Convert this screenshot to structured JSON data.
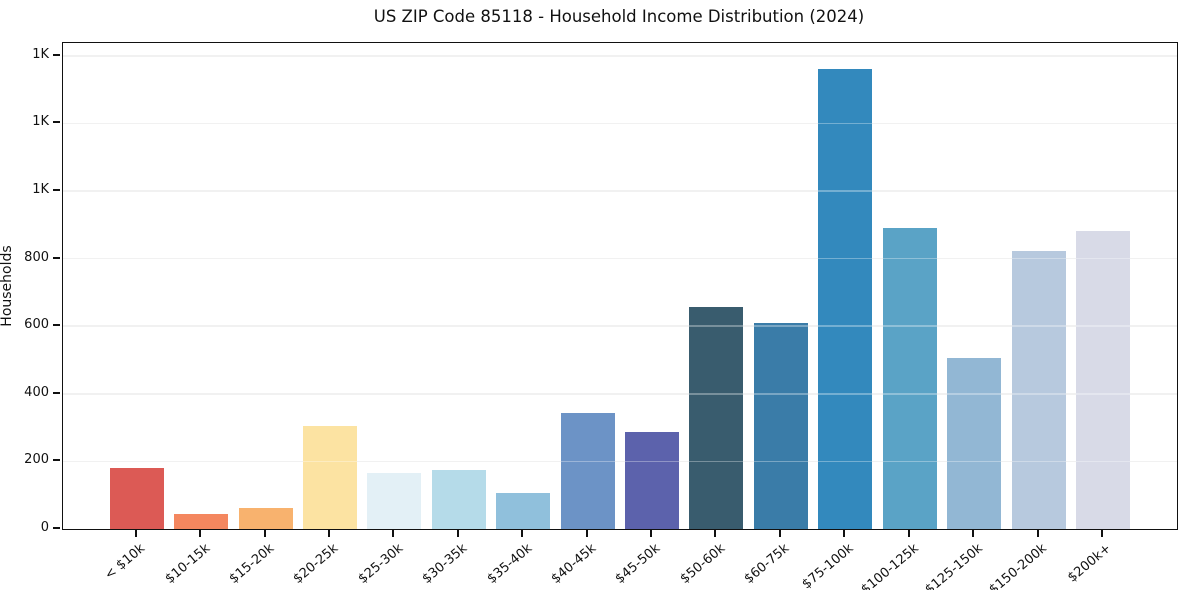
{
  "title": "US ZIP Code 85118 - Household Income Distribution (2024)",
  "chart_data": {
    "type": "bar",
    "title": "US ZIP Code 85118 - Household Income Distribution (2024)",
    "xlabel": "",
    "ylabel": "Households",
    "categories": [
      "< $10k",
      "$10-15k",
      "$15-20k",
      "$20-25k",
      "$25-30k",
      "$30-35k",
      "$35-40k",
      "$40-45k",
      "$45-50k",
      "$50-60k",
      "$60-75k",
      "$75-100k",
      "$100-125k",
      "$125-150k",
      "$150-200k",
      "$200k+"
    ],
    "values": [
      180,
      45,
      63,
      305,
      167,
      176,
      108,
      342,
      286,
      657,
      611,
      1362,
      891,
      507,
      822,
      883
    ],
    "bar_colors": [
      "#dc5a55",
      "#f4875f",
      "#f8b26e",
      "#fce3a2",
      "#e3f0f6",
      "#b5dbe9",
      "#90c0dc",
      "#6c93c6",
      "#5c62ac",
      "#395c6e",
      "#3a7ca8",
      "#3389bd",
      "#5aa3c6",
      "#92b7d4",
      "#b7c9de",
      "#d8dae7"
    ],
    "ylim": [
      0,
      1438
    ],
    "yticks": {
      "values": [
        0,
        200,
        400,
        600,
        800,
        1000,
        1200,
        1400
      ],
      "labels": [
        "0",
        "200",
        "400",
        "600",
        "800",
        "1K",
        "1K",
        "1K"
      ]
    },
    "grid": "horizontal",
    "grid_color": "#eaeaea",
    "legend": "none",
    "background": "#ffffff",
    "axis_color": "#111111"
  }
}
